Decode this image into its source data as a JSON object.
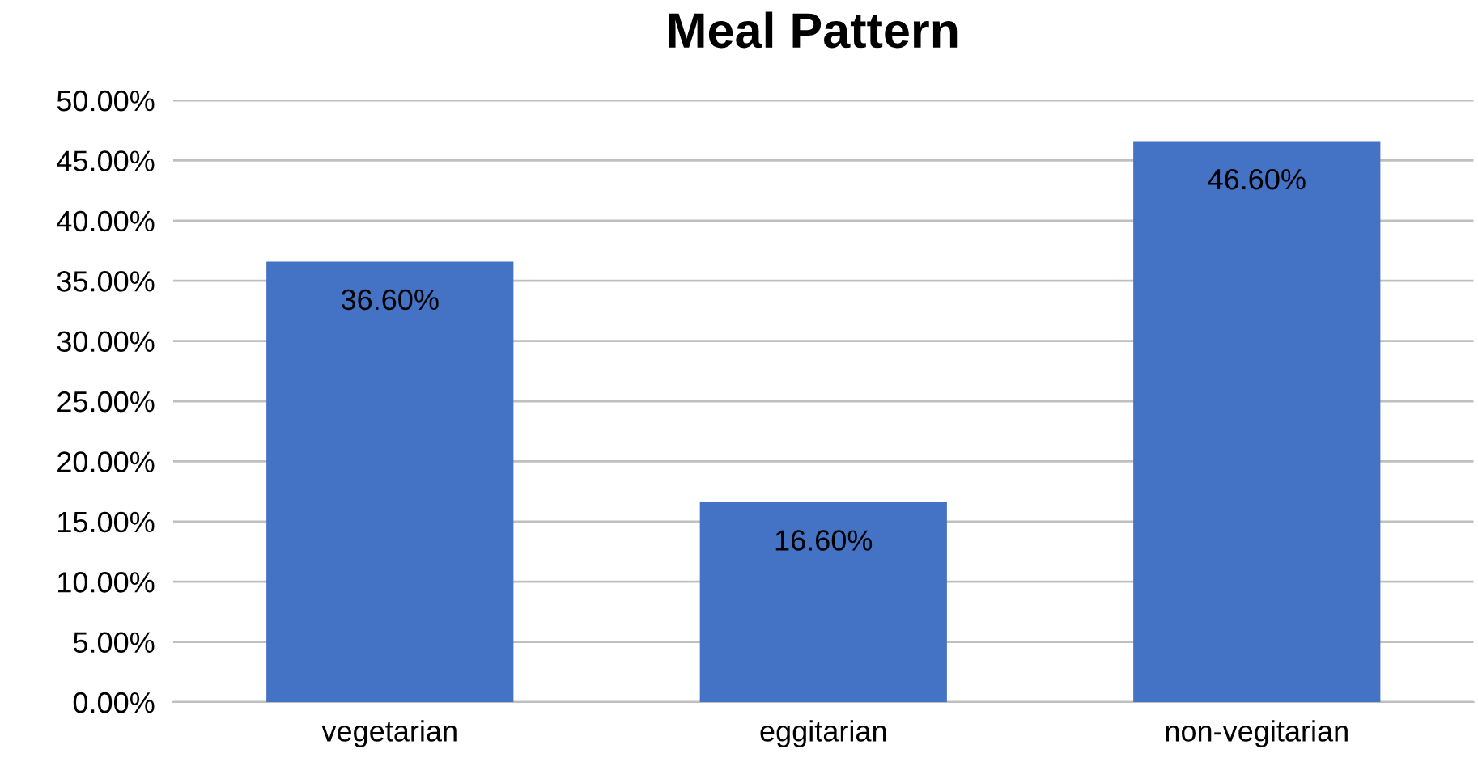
{
  "chart_data": {
    "type": "bar",
    "title": "Meal Pattern",
    "categories": [
      "vegetarian",
      "eggitarian",
      "non-vegitarian"
    ],
    "values": [
      36.6,
      16.6,
      46.6
    ],
    "color": "#4472c4",
    "value_labels": [
      "36.60%",
      "16.60%",
      "46.60%"
    ],
    "ylim": [
      0,
      50
    ],
    "yticks": [
      {
        "value": 0,
        "label": "0.00%"
      },
      {
        "value": 5,
        "label": "5.00%"
      },
      {
        "value": 10,
        "label": "10.00%"
      },
      {
        "value": 15,
        "label": "15.00%"
      },
      {
        "value": 20,
        "label": "20.00%"
      },
      {
        "value": 25,
        "label": "25.00%"
      },
      {
        "value": 30,
        "label": "30.00%"
      },
      {
        "value": 35,
        "label": "35.00%"
      },
      {
        "value": 40,
        "label": "40.00%"
      },
      {
        "value": 45,
        "label": "45.00%"
      },
      {
        "value": 50,
        "label": "50.00%"
      }
    ],
    "grid": "y",
    "legend": false
  }
}
